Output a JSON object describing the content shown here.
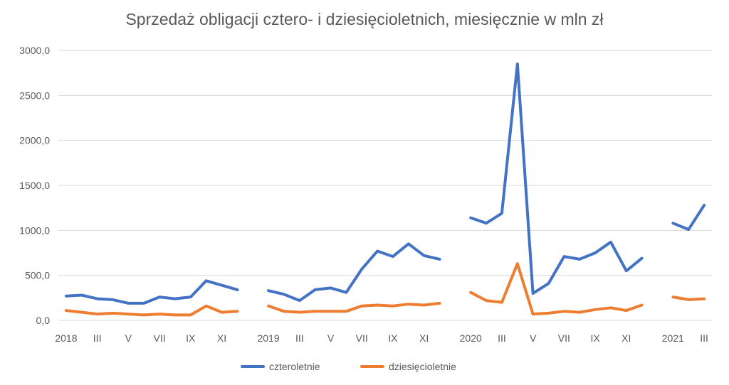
{
  "chart_data": {
    "type": "line",
    "title": "Sprzedaż obligacji cztero- i dziesięcioletnich, miesięcznie w mln zł",
    "ylim": [
      0,
      3000
    ],
    "yticks": [
      "0,0",
      "500,0",
      "1000,0",
      "1500,0",
      "2000,0",
      "2500,0",
      "3000,0"
    ],
    "grid": true,
    "legend_position": "bottom",
    "x_tick_labels": [
      {
        "i": 0,
        "label": "2018"
      },
      {
        "i": 2,
        "label": "III"
      },
      {
        "i": 4,
        "label": "V"
      },
      {
        "i": 6,
        "label": "VII"
      },
      {
        "i": 8,
        "label": "IX"
      },
      {
        "i": 10,
        "label": "XI"
      },
      {
        "i": 13,
        "label": "2019"
      },
      {
        "i": 15,
        "label": "III"
      },
      {
        "i": 17,
        "label": "V"
      },
      {
        "i": 19,
        "label": "VII"
      },
      {
        "i": 21,
        "label": "IX"
      },
      {
        "i": 23,
        "label": "XI"
      },
      {
        "i": 26,
        "label": "2020"
      },
      {
        "i": 28,
        "label": "III"
      },
      {
        "i": 30,
        "label": "V"
      },
      {
        "i": 32,
        "label": "VII"
      },
      {
        "i": 34,
        "label": "IX"
      },
      {
        "i": 36,
        "label": "XI"
      },
      {
        "i": 39,
        "label": "2021"
      },
      {
        "i": 41,
        "label": "III"
      }
    ],
    "series": [
      {
        "name": "czteroletnie",
        "color": "#4472C4",
        "segments": [
          [
            270,
            280,
            240,
            230,
            190,
            190,
            260,
            240,
            260,
            440,
            390,
            340
          ],
          [
            330,
            290,
            220,
            340,
            360,
            310,
            570,
            770,
            710,
            850,
            720,
            680
          ],
          [
            1140,
            1080,
            1190,
            2850,
            300,
            410,
            710,
            680,
            750,
            870,
            550,
            690
          ],
          [
            1080,
            1010,
            1280
          ]
        ]
      },
      {
        "name": "dziesięcioletnie",
        "color": "#ED7D31",
        "segments": [
          [
            110,
            90,
            70,
            80,
            70,
            60,
            70,
            60,
            60,
            160,
            90,
            100
          ],
          [
            160,
            100,
            90,
            100,
            100,
            100,
            160,
            170,
            160,
            180,
            170,
            190
          ],
          [
            310,
            220,
            200,
            630,
            70,
            80,
            100,
            90,
            120,
            140,
            110,
            170
          ],
          [
            260,
            230,
            240
          ]
        ]
      }
    ]
  }
}
